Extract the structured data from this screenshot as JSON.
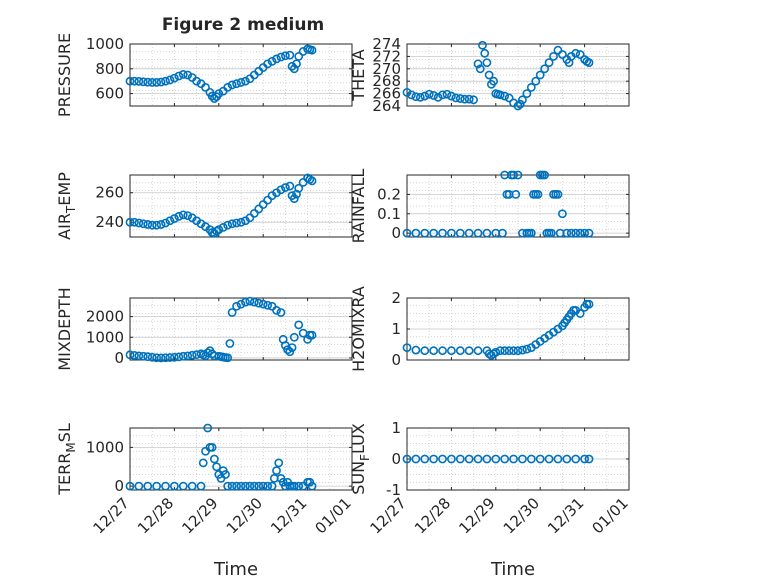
{
  "figure_title": "Figure 2 medium",
  "colors": {
    "marker": "#0072BD",
    "axis": "#262626",
    "grid": "#c8c8c8",
    "background": "#ffffff"
  },
  "chart_data": [
    {
      "type": "scatter",
      "ylabel": "PRESSURE",
      "xlabel": "",
      "title": "Figure 2 medium",
      "xlim": [
        "12/27",
        "01/01"
      ],
      "ylim": [
        500,
        1000
      ],
      "yticks": [
        600,
        800,
        1000
      ],
      "xticks": [],
      "grid": true,
      "x_days": [
        0.0,
        0.1,
        0.2,
        0.3,
        0.4,
        0.5,
        0.6,
        0.7,
        0.8,
        0.9,
        1.0,
        1.1,
        1.2,
        1.3,
        1.4,
        1.5,
        1.6,
        1.7,
        1.8,
        1.85,
        1.9,
        1.95,
        2.0,
        2.1,
        2.2,
        2.3,
        2.4,
        2.5,
        2.6,
        2.7,
        2.8,
        2.9,
        3.0,
        3.1,
        3.2,
        3.3,
        3.4,
        3.5,
        3.6,
        3.65,
        3.7,
        3.75,
        3.8,
        3.9,
        4.0,
        4.05,
        4.1
      ],
      "values": [
        700,
        700,
        698,
        695,
        692,
        690,
        690,
        693,
        700,
        710,
        725,
        742,
        755,
        750,
        730,
        700,
        680,
        650,
        610,
        580,
        560,
        575,
        600,
        620,
        650,
        670,
        680,
        690,
        700,
        720,
        750,
        780,
        810,
        840,
        860,
        880,
        895,
        905,
        910,
        820,
        800,
        840,
        900,
        940,
        960,
        955,
        950
      ]
    },
    {
      "type": "scatter",
      "ylabel": "THETA",
      "xlabel": "",
      "xlim": [
        "12/27",
        "01/01"
      ],
      "ylim": [
        264,
        274
      ],
      "yticks": [
        264,
        266,
        268,
        270,
        272,
        274
      ],
      "xticks": [],
      "grid": true,
      "x_days": [
        0.0,
        0.1,
        0.2,
        0.3,
        0.4,
        0.5,
        0.6,
        0.7,
        0.8,
        0.9,
        1.0,
        1.1,
        1.2,
        1.3,
        1.4,
        1.5,
        1.6,
        1.65,
        1.7,
        1.75,
        1.8,
        1.85,
        1.9,
        1.95,
        2.0,
        2.05,
        2.1,
        2.2,
        2.3,
        2.4,
        2.5,
        2.55,
        2.6,
        2.7,
        2.8,
        2.9,
        3.0,
        3.1,
        3.2,
        3.3,
        3.4,
        3.5,
        3.6,
        3.65,
        3.7,
        3.8,
        3.9,
        4.0,
        4.05,
        4.1
      ],
      "values": [
        266.2,
        265.8,
        265.5,
        265.4,
        265.6,
        265.9,
        265.7,
        265.4,
        265.8,
        265.9,
        265.6,
        265.3,
        265.2,
        265.1,
        265.1,
        265.0,
        270.8,
        270.0,
        273.8,
        272.5,
        271.0,
        269.0,
        267.5,
        268.0,
        266.0,
        265.9,
        265.8,
        265.6,
        265.3,
        264.5,
        264.0,
        264.3,
        265.0,
        266.0,
        267.0,
        268.0,
        269.0,
        270.0,
        271.0,
        272.0,
        273.0,
        272.3,
        271.5,
        271.0,
        272.0,
        272.5,
        272.3,
        271.5,
        271.2,
        271.0
      ]
    },
    {
      "type": "scatter",
      "ylabel": "AIR_TEMP",
      "xlabel": "",
      "xlim": [
        "12/27",
        "01/01"
      ],
      "ylim": [
        230,
        272
      ],
      "yticks": [
        240,
        260
      ],
      "xticks": [],
      "grid": true,
      "x_days": [
        0.0,
        0.1,
        0.2,
        0.3,
        0.4,
        0.5,
        0.6,
        0.7,
        0.8,
        0.9,
        1.0,
        1.1,
        1.2,
        1.3,
        1.4,
        1.5,
        1.6,
        1.7,
        1.8,
        1.85,
        1.9,
        1.95,
        2.0,
        2.1,
        2.2,
        2.3,
        2.4,
        2.5,
        2.6,
        2.7,
        2.8,
        2.9,
        3.0,
        3.1,
        3.2,
        3.3,
        3.4,
        3.5,
        3.6,
        3.65,
        3.7,
        3.75,
        3.8,
        3.9,
        4.0,
        4.05,
        4.1
      ],
      "values": [
        240,
        240,
        239.5,
        239,
        238.5,
        238,
        238,
        238.5,
        239.5,
        241,
        242.5,
        244,
        245,
        244.5,
        243,
        241,
        239,
        237,
        235,
        233,
        232.5,
        234,
        235,
        236.5,
        238,
        239,
        239.5,
        240,
        241,
        243,
        246,
        249,
        252,
        255,
        258,
        260,
        262,
        263.5,
        264.5,
        258,
        256,
        259,
        263,
        267,
        270,
        269,
        268
      ]
    },
    {
      "type": "scatter",
      "ylabel": "RAINFALL",
      "xlabel": "",
      "xlim": [
        "12/27",
        "01/01"
      ],
      "ylim": [
        -0.02,
        0.3
      ],
      "yticks": [
        0,
        0.1,
        0.2
      ],
      "xticks": [],
      "grid": true,
      "x_days": [
        0.0,
        0.2,
        0.4,
        0.6,
        0.8,
        1.0,
        1.2,
        1.4,
        1.6,
        1.8,
        2.0,
        2.15,
        2.2,
        2.25,
        2.3,
        2.35,
        2.4,
        2.45,
        2.5,
        2.6,
        2.7,
        2.75,
        2.8,
        2.85,
        2.9,
        2.95,
        3.0,
        3.05,
        3.1,
        3.15,
        3.2,
        3.25,
        3.3,
        3.35,
        3.4,
        3.45,
        3.5,
        3.6,
        3.7,
        3.8,
        3.9,
        4.0,
        4.1
      ],
      "values": [
        0,
        0,
        0,
        0,
        0,
        0,
        0,
        0,
        0,
        0,
        0,
        0,
        0.3,
        0.2,
        0.2,
        0.3,
        0.3,
        0.2,
        0.3,
        0,
        0,
        0,
        0,
        0.2,
        0.2,
        0.2,
        0.3,
        0.3,
        0.3,
        0,
        0,
        0,
        0.2,
        0.2,
        0.2,
        0,
        0.1,
        0,
        0,
        0,
        0,
        0,
        0
      ]
    },
    {
      "type": "scatter",
      "ylabel": "MIXDEPTH",
      "xlabel": "",
      "xlim": [
        "12/27",
        "01/01"
      ],
      "ylim": [
        -100,
        2900
      ],
      "yticks": [
        0,
        1000,
        2000
      ],
      "xticks": [],
      "grid": true,
      "x_days": [
        0.0,
        0.1,
        0.2,
        0.3,
        0.4,
        0.5,
        0.6,
        0.7,
        0.8,
        0.9,
        1.0,
        1.1,
        1.2,
        1.3,
        1.4,
        1.5,
        1.6,
        1.65,
        1.7,
        1.75,
        1.8,
        1.85,
        1.9,
        2.0,
        2.05,
        2.1,
        2.15,
        2.2,
        2.25,
        2.3,
        2.4,
        2.5,
        2.6,
        2.7,
        2.8,
        2.9,
        3.0,
        3.1,
        3.2,
        3.3,
        3.4,
        3.45,
        3.5,
        3.55,
        3.6,
        3.65,
        3.7,
        3.8,
        3.9,
        4.0,
        4.05,
        4.1
      ],
      "values": [
        150,
        120,
        100,
        80,
        60,
        30,
        10,
        0,
        10,
        20,
        30,
        50,
        80,
        100,
        130,
        160,
        200,
        150,
        100,
        250,
        350,
        200,
        100,
        80,
        60,
        40,
        20,
        10,
        700,
        2200,
        2500,
        2600,
        2700,
        2750,
        2700,
        2650,
        2600,
        2550,
        2500,
        2300,
        2200,
        900,
        600,
        400,
        300,
        500,
        1000,
        1600,
        1200,
        900,
        1100,
        1100
      ]
    },
    {
      "type": "scatter",
      "ylabel": "H2OMIXRA",
      "xlabel": "",
      "xlim": [
        "12/27",
        "01/01"
      ],
      "ylim": [
        0,
        2
      ],
      "yticks": [
        0,
        1,
        2
      ],
      "xticks": [],
      "grid": true,
      "x_days": [
        0.0,
        0.2,
        0.4,
        0.6,
        0.8,
        1.0,
        1.2,
        1.4,
        1.6,
        1.8,
        1.85,
        1.9,
        1.95,
        2.0,
        2.1,
        2.2,
        2.3,
        2.4,
        2.5,
        2.6,
        2.7,
        2.8,
        2.9,
        3.0,
        3.1,
        3.2,
        3.3,
        3.4,
        3.5,
        3.55,
        3.6,
        3.65,
        3.7,
        3.75,
        3.8,
        3.9,
        4.0,
        4.05,
        4.1
      ],
      "values": [
        0.4,
        0.32,
        0.3,
        0.3,
        0.3,
        0.3,
        0.3,
        0.3,
        0.3,
        0.3,
        0.2,
        0.15,
        0.2,
        0.25,
        0.3,
        0.3,
        0.3,
        0.3,
        0.3,
        0.32,
        0.35,
        0.4,
        0.5,
        0.6,
        0.7,
        0.8,
        0.9,
        1.0,
        1.1,
        1.2,
        1.3,
        1.4,
        1.5,
        1.6,
        1.6,
        1.5,
        1.7,
        1.8,
        1.8
      ]
    },
    {
      "type": "scatter",
      "ylabel": "TERR_MSL",
      "xlabel": "Time",
      "xlim": [
        "12/27",
        "01/01"
      ],
      "ylim": [
        -100,
        1500
      ],
      "yticks": [
        0,
        1000
      ],
      "xticks": [
        "12/27",
        "12/28",
        "12/29",
        "12/30",
        "12/31",
        "01/01"
      ],
      "grid": true,
      "x_days": [
        0.0,
        0.2,
        0.4,
        0.6,
        0.8,
        1.0,
        1.2,
        1.4,
        1.6,
        1.65,
        1.7,
        1.75,
        1.8,
        1.85,
        1.9,
        1.95,
        2.0,
        2.05,
        2.1,
        2.15,
        2.2,
        2.3,
        2.4,
        2.5,
        2.6,
        2.7,
        2.8,
        2.9,
        3.0,
        3.1,
        3.2,
        3.25,
        3.3,
        3.35,
        3.4,
        3.45,
        3.5,
        3.55,
        3.6,
        3.65,
        3.7,
        3.8,
        3.9,
        4.0,
        4.05,
        4.1
      ],
      "values": [
        0,
        0,
        0,
        0,
        0,
        0,
        0,
        0,
        0,
        600,
        900,
        1500,
        1000,
        1000,
        700,
        500,
        300,
        200,
        400,
        300,
        0,
        0,
        0,
        0,
        0,
        0,
        0,
        0,
        0,
        0,
        0,
        200,
        400,
        600,
        200,
        100,
        0,
        100,
        0,
        0,
        0,
        0,
        0,
        100,
        100,
        0
      ]
    },
    {
      "type": "scatter",
      "ylabel": "SUN_FLUX",
      "xlabel": "Time",
      "xlim": [
        "12/27",
        "01/01"
      ],
      "ylim": [
        -1,
        1
      ],
      "yticks": [
        -1,
        0,
        1
      ],
      "xticks": [
        "12/27",
        "12/28",
        "12/29",
        "12/30",
        "12/31",
        "01/01"
      ],
      "grid": true,
      "x_days": [
        0.0,
        0.2,
        0.4,
        0.6,
        0.8,
        1.0,
        1.2,
        1.4,
        1.6,
        1.8,
        2.0,
        2.2,
        2.4,
        2.6,
        2.8,
        3.0,
        3.2,
        3.4,
        3.6,
        3.8,
        4.0,
        4.1
      ],
      "values": [
        0,
        0,
        0,
        0,
        0,
        0,
        0,
        0,
        0,
        0,
        0,
        0,
        0,
        0,
        0,
        0,
        0,
        0,
        0,
        0,
        0,
        0
      ]
    }
  ]
}
